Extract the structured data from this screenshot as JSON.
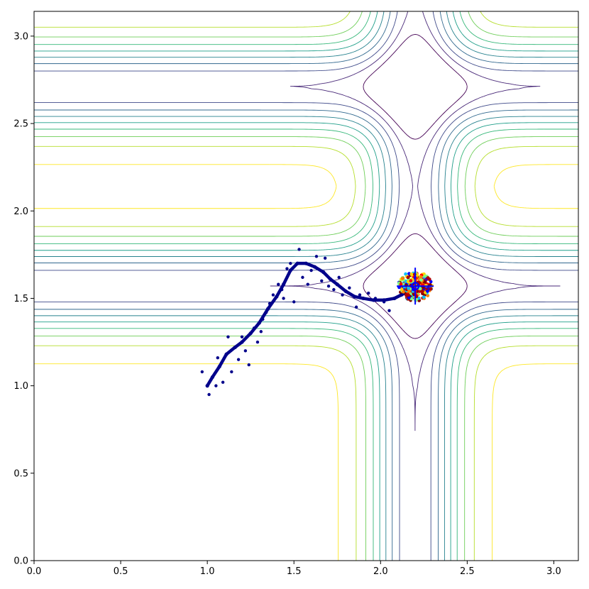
{
  "chart_data": {
    "type": "scatter",
    "title": "",
    "xlabel": "",
    "ylabel": "",
    "xlim": [
      0,
      3.14159
    ],
    "ylim": [
      0,
      3.14159
    ],
    "x_ticks": [
      0.0,
      0.5,
      1.0,
      1.5,
      2.0,
      2.5,
      3.0
    ],
    "x_tick_labels": [
      "0.0",
      "0.5",
      "1.0",
      "1.5",
      "2.0",
      "2.5",
      "3.0"
    ],
    "y_ticks": [
      0.0,
      0.5,
      1.0,
      1.5,
      2.0,
      2.5,
      3.0
    ],
    "y_tick_labels": [
      "0.0",
      "0.5",
      "1.0",
      "1.5",
      "2.0",
      "2.5",
      "3.0"
    ],
    "grid": false,
    "contour": {
      "colormap": "viridis",
      "x_wells": [
        2.2
      ],
      "y_wells": [
        1.57,
        2.71
      ],
      "levels": [
        0.05,
        0.1,
        0.15,
        0.2,
        0.25,
        0.3,
        0.35,
        0.4,
        0.45,
        0.5
      ],
      "level_colors": [
        "#440154",
        "#482878",
        "#3e4989",
        "#31688e",
        "#26828e",
        "#1f9e89",
        "#35b779",
        "#6ece58",
        "#b5de2b",
        "#fde725"
      ]
    },
    "series": [
      {
        "marker_color": "#00008b",
        "path": [
          [
            1.0,
            1.0
          ],
          [
            1.03,
            1.05
          ],
          [
            1.07,
            1.11
          ],
          [
            1.11,
            1.18
          ],
          [
            1.16,
            1.22
          ],
          [
            1.2,
            1.25
          ],
          [
            1.25,
            1.3
          ],
          [
            1.3,
            1.36
          ],
          [
            1.35,
            1.44
          ],
          [
            1.4,
            1.51
          ],
          [
            1.44,
            1.58
          ],
          [
            1.48,
            1.66
          ],
          [
            1.52,
            1.7
          ],
          [
            1.57,
            1.7
          ],
          [
            1.62,
            1.68
          ],
          [
            1.67,
            1.65
          ],
          [
            1.71,
            1.61
          ],
          [
            1.75,
            1.58
          ],
          [
            1.8,
            1.54
          ],
          [
            1.85,
            1.51
          ],
          [
            1.9,
            1.5
          ],
          [
            1.96,
            1.49
          ],
          [
            2.02,
            1.49
          ],
          [
            2.08,
            1.5
          ],
          [
            2.12,
            1.52
          ],
          [
            2.16,
            1.54
          ],
          [
            2.2,
            1.57
          ]
        ],
        "scatter": [
          [
            0.97,
            1.08
          ],
          [
            1.01,
            0.95
          ],
          [
            1.05,
            1.0
          ],
          [
            1.06,
            1.16
          ],
          [
            1.09,
            1.02
          ],
          [
            1.12,
            1.28
          ],
          [
            1.14,
            1.08
          ],
          [
            1.18,
            1.15
          ],
          [
            1.2,
            1.28
          ],
          [
            1.22,
            1.2
          ],
          [
            1.24,
            1.12
          ],
          [
            1.27,
            1.33
          ],
          [
            1.29,
            1.25
          ],
          [
            1.32,
            1.38
          ],
          [
            1.34,
            1.42
          ],
          [
            1.36,
            1.47
          ],
          [
            1.38,
            1.52
          ],
          [
            1.41,
            1.58
          ],
          [
            1.43,
            1.55
          ],
          [
            1.46,
            1.67
          ],
          [
            1.48,
            1.7
          ],
          [
            1.53,
            1.78
          ],
          [
            1.55,
            1.62
          ],
          [
            1.58,
            1.58
          ],
          [
            1.6,
            1.66
          ],
          [
            1.63,
            1.74
          ],
          [
            1.66,
            1.6
          ],
          [
            1.68,
            1.73
          ],
          [
            1.7,
            1.57
          ],
          [
            1.73,
            1.55
          ],
          [
            1.76,
            1.62
          ],
          [
            1.78,
            1.52
          ],
          [
            1.82,
            1.56
          ],
          [
            1.86,
            1.45
          ],
          [
            1.88,
            1.52
          ],
          [
            1.93,
            1.53
          ],
          [
            1.97,
            1.5
          ],
          [
            2.02,
            1.48
          ],
          [
            2.05,
            1.43
          ],
          [
            1.5,
            1.48
          ],
          [
            1.44,
            1.5
          ],
          [
            1.31,
            1.31
          ]
        ]
      }
    ],
    "final_cluster": {
      "center": [
        2.2,
        1.57
      ],
      "spread": 0.085,
      "colors": [
        "#800000",
        "#b00000",
        "#ff0000",
        "#ff7f00",
        "#ffd400",
        "#7fff7f",
        "#00c0ff",
        "#0000ff"
      ]
    }
  }
}
